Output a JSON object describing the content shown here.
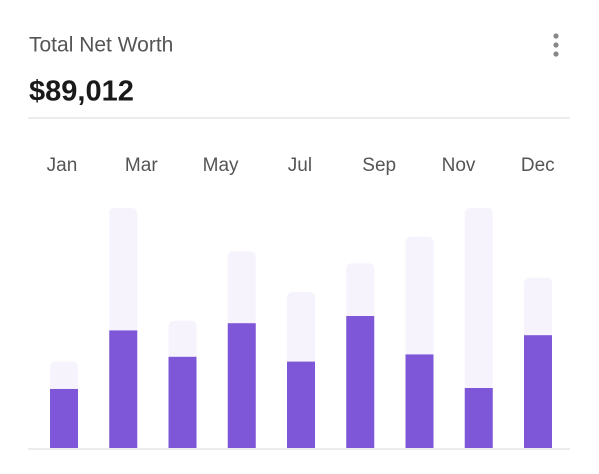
{
  "chart_data": {
    "type": "bar",
    "title": "Total Net Worth",
    "headline": "$89,012",
    "xlabels": [
      "Jan",
      "Mar",
      "May",
      "Jul",
      "Sep",
      "Nov",
      "Dec"
    ],
    "ylim": [
      0,
      100
    ],
    "series": [
      {
        "color": "#f6f3fd",
        "values": [
          36,
          100,
          53,
          82,
          65,
          77,
          88,
          100,
          71
        ]
      },
      {
        "color": "#7e57d9",
        "values": [
          24.6,
          49,
          38,
          52,
          36,
          55,
          39,
          25,
          47
        ]
      }
    ]
  }
}
